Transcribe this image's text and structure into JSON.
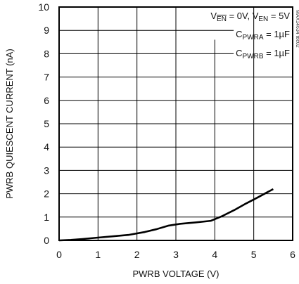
{
  "chart_data": {
    "type": "line",
    "xlabel": "PWRB VOLTAGE (V)",
    "ylabel": "PWRB QUIESCENT CURRENT (nA)",
    "xlim": [
      0,
      6
    ],
    "ylim": [
      0,
      10
    ],
    "xticks": [
      "0",
      "1",
      "2",
      "3",
      "4",
      "5",
      "6"
    ],
    "yticks": [
      "0",
      "1",
      "2",
      "3",
      "4",
      "5",
      "6",
      "7",
      "8",
      "9",
      "10"
    ],
    "grid": true,
    "series": [
      {
        "x": [
          0,
          0.3,
          0.6,
          1.0,
          1.4,
          1.8,
          2.2,
          2.5,
          2.8,
          3.1,
          3.5,
          3.9,
          4.2,
          4.5,
          4.8,
          5.1,
          5.3,
          5.5
        ],
        "y": [
          0,
          0.02,
          0.06,
          0.12,
          0.18,
          0.24,
          0.36,
          0.48,
          0.63,
          0.71,
          0.77,
          0.84,
          1.05,
          1.3,
          1.58,
          1.84,
          2.02,
          2.2
        ]
      }
    ],
    "annotations": [
      {
        "parts": [
          {
            "t": "V",
            "sub": false
          },
          {
            "t": "EN",
            "sub": true,
            "overline": true
          },
          {
            "t": " = 0V, V",
            "sub": false
          },
          {
            "t": "EN",
            "sub": true
          },
          {
            "t": " = 5V",
            "sub": false
          }
        ]
      },
      {
        "parts": [
          {
            "t": "C",
            "sub": false
          },
          {
            "t": "PWRA",
            "sub": true
          },
          {
            "t": " = 1µF",
            "sub": false
          }
        ]
      },
      {
        "parts": [
          {
            "t": "C",
            "sub": false
          },
          {
            "t": "PWRB",
            "sub": true
          },
          {
            "t": " = 1µF",
            "sub": false
          }
        ]
      }
    ],
    "side_id": "MAX14634 toc02"
  }
}
